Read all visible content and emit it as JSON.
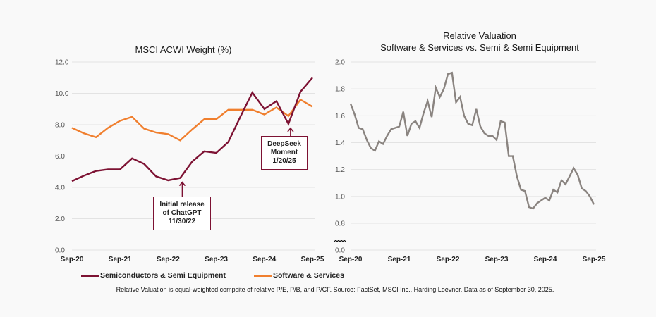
{
  "colors": {
    "semis": "#7d1233",
    "software": "#f07f2e",
    "relative": "#8a8480",
    "grid": "#e3e3e3",
    "background": "#f9f9f9"
  },
  "chart_data": [
    {
      "type": "line",
      "title": "MSCI ACWI Weight (%)",
      "xlabel": "",
      "ylabel": "",
      "ylim": [
        0,
        12
      ],
      "yticks": [
        "0.0",
        "2.0",
        "4.0",
        "6.0",
        "8.0",
        "10.0",
        "12.0"
      ],
      "ytick_values": [
        0,
        2,
        4,
        6,
        8,
        10,
        12
      ],
      "xticks": [
        "Sep-20",
        "Sep-21",
        "Sep-22",
        "Sep-23",
        "Sep-24",
        "Sep-25"
      ],
      "x_frequency": "quarterly",
      "grid": true,
      "legend_position": "bottom",
      "series": [
        {
          "name": "Semiconductors & Semi Equipment",
          "values": [
            4.4,
            4.75,
            5.05,
            5.15,
            5.15,
            5.85,
            5.5,
            4.7,
            4.45,
            4.6,
            5.65,
            6.3,
            6.2,
            6.9,
            8.5,
            10.05,
            9.0,
            9.5,
            8.05,
            10.1,
            11.0
          ]
        },
        {
          "name": "Software & Services",
          "values": [
            7.8,
            7.45,
            7.2,
            7.8,
            8.25,
            8.5,
            7.75,
            7.5,
            7.4,
            7.0,
            7.7,
            8.35,
            8.35,
            8.95,
            8.95,
            8.95,
            8.65,
            9.1,
            8.55,
            9.6,
            9.15
          ]
        }
      ],
      "annotations": [
        {
          "text": "Initial release\nof ChatGPT\n11/30/22",
          "series": "Semiconductors & Semi Equipment",
          "point_index": 9
        },
        {
          "text": "DeepSeek\nMoment\n1/20/25",
          "series": "Semiconductors & Semi Equipment",
          "point_index": 18
        }
      ]
    },
    {
      "type": "line",
      "title": "Relative Valuation\nSoftware & Services vs. Semi & Semi Equipment",
      "xlabel": "",
      "ylabel": "",
      "ylim": [
        0.0,
        2.0
      ],
      "axis_break": "between 0.0 and 0.8",
      "yticks": [
        "0.0",
        "0.8",
        "1.0",
        "1.2",
        "1.4",
        "1.6",
        "1.8",
        "2.0"
      ],
      "ytick_values": [
        0.0,
        0.8,
        1.0,
        1.2,
        1.4,
        1.6,
        1.8,
        2.0
      ],
      "xticks": [
        "Sep-20",
        "Sep-21",
        "Sep-22",
        "Sep-23",
        "Sep-24",
        "Sep-25"
      ],
      "x_frequency": "monthly",
      "grid": true,
      "series": [
        {
          "name": "Relative Valuation",
          "values": [
            1.69,
            1.61,
            1.51,
            1.5,
            1.42,
            1.36,
            1.34,
            1.41,
            1.39,
            1.45,
            1.5,
            1.51,
            1.52,
            1.63,
            1.45,
            1.54,
            1.56,
            1.51,
            1.62,
            1.71,
            1.59,
            1.81,
            1.74,
            1.8,
            1.91,
            1.92,
            1.7,
            1.74,
            1.6,
            1.54,
            1.53,
            1.65,
            1.52,
            1.47,
            1.45,
            1.45,
            1.42,
            1.56,
            1.55,
            1.3,
            1.3,
            1.15,
            1.05,
            1.04,
            0.92,
            0.91,
            0.95,
            0.97,
            0.99,
            0.97,
            1.05,
            1.03,
            1.12,
            1.09,
            1.15,
            1.21,
            1.16,
            1.06,
            1.04,
            1.0,
            0.94
          ]
        }
      ]
    }
  ],
  "legend": {
    "items": [
      "Semiconductors & Semi Equipment",
      "Software & Services"
    ]
  },
  "footnote": "Relative Valuation is equal-weighted compsite of relative P/E, P/B, and P/CF. Source: FactSet, MSCI Inc., Harding Loevner. Data as of September 30, 2025."
}
